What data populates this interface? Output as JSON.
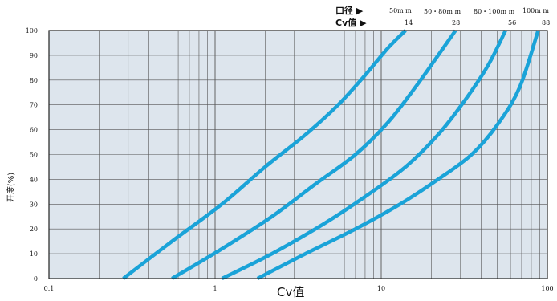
{
  "header": {
    "caliber_label": "口径 ▶",
    "cv_label": "Cv值 ▶",
    "sizes": [
      "50m m",
      "50・80m m",
      "80・100m m",
      "100m m"
    ],
    "cv_values": [
      "14",
      "28",
      "56",
      "88"
    ]
  },
  "chart_data": {
    "type": "line",
    "title": "",
    "xlabel": "Cv值",
    "ylabel": "开度(%)",
    "xscale": "log",
    "xlim": [
      0.1,
      100
    ],
    "ylim": [
      0,
      100
    ],
    "xticks": [
      "0.1",
      "1",
      "10",
      "100"
    ],
    "yticks": [
      "0",
      "10",
      "20",
      "30",
      "40",
      "50",
      "60",
      "70",
      "80",
      "90",
      "100"
    ],
    "grid": true,
    "background": "#dde5ed",
    "line_color": "#1aa3d8",
    "series": [
      {
        "x": [
          0.28,
          0.55,
          1.1,
          2.0,
          3.5,
          5.5,
          8.0,
          11.0,
          14.0
        ],
        "y": [
          0,
          15,
          30,
          45,
          58,
          70,
          82,
          93,
          100
        ]
      },
      {
        "x": [
          0.55,
          1.1,
          2.2,
          4.0,
          7.0,
          11.0,
          16.0,
          22.0,
          28.0
        ],
        "y": [
          0,
          12,
          25,
          38,
          50,
          63,
          77,
          90,
          100
        ]
      },
      {
        "x": [
          1.1,
          2.2,
          4.5,
          8.0,
          14.0,
          22.0,
          32.0,
          44.0,
          56.0
        ],
        "y": [
          0,
          10,
          22,
          33,
          45,
          58,
          72,
          86,
          100
        ]
      },
      {
        "x": [
          1.8,
          3.5,
          7.0,
          13.0,
          22.0,
          35.0,
          50.0,
          68.0,
          88.0
        ],
        "y": [
          0,
          10,
          20,
          30,
          40,
          50,
          62,
          77,
          100
        ]
      }
    ]
  }
}
